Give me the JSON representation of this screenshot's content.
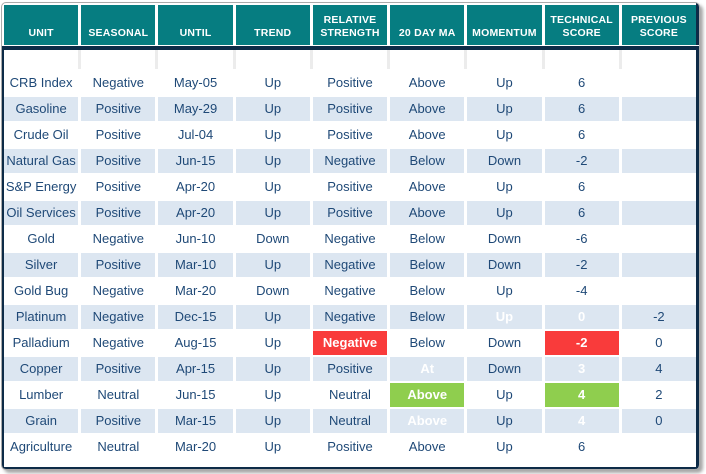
{
  "colors": {
    "header_teal": "#067d81",
    "divider_navy": "#0d2b47",
    "row_alt_blue": "#dce6f1",
    "text_navy": "#1f4977",
    "highlight_green": "#8fce4e",
    "highlight_red": "#f93b3b"
  },
  "table": {
    "columns": [
      "UNIT",
      "SEASONAL",
      "UNTIL",
      "TREND",
      "RELATIVE STRENGTH",
      "20 DAY MA",
      "MOMENTUM",
      "TECHNICAL SCORE",
      "PREVIOUS SCORE"
    ],
    "rows": [
      {
        "cells": [
          "CRB Index",
          "Negative",
          "May-05",
          "Up",
          "Positive",
          "Above",
          "Up",
          "6",
          ""
        ],
        "highlights": {}
      },
      {
        "cells": [
          "Gasoline",
          "Positive",
          "May-29",
          "Up",
          "Positive",
          "Above",
          "Up",
          "6",
          ""
        ],
        "highlights": {}
      },
      {
        "cells": [
          "Crude Oil",
          "Positive",
          "Jul-04",
          "Up",
          "Positive",
          "Above",
          "Up",
          "6",
          ""
        ],
        "highlights": {}
      },
      {
        "cells": [
          "Natural Gas",
          "Positive",
          "Jun-15",
          "Up",
          "Negative",
          "Below",
          "Down",
          "-2",
          ""
        ],
        "highlights": {}
      },
      {
        "cells": [
          "S&P Energy",
          "Positive",
          "Apr-20",
          "Up",
          "Positive",
          "Above",
          "Up",
          "6",
          ""
        ],
        "highlights": {}
      },
      {
        "cells": [
          "Oil Services",
          "Positive",
          "Apr-20",
          "Up",
          "Positive",
          "Above",
          "Up",
          "6",
          ""
        ],
        "highlights": {}
      },
      {
        "cells": [
          "Gold",
          "Negative",
          "Jun-10",
          "Down",
          "Negative",
          "Below",
          "Down",
          "-6",
          ""
        ],
        "highlights": {}
      },
      {
        "cells": [
          "Silver",
          "Positive",
          "Mar-10",
          "Up",
          "Negative",
          "Below",
          "Down",
          "-2",
          ""
        ],
        "highlights": {}
      },
      {
        "cells": [
          "Gold Bug",
          "Negative",
          "Mar-20",
          "Down",
          "Negative",
          "Below",
          "Up",
          "-4",
          ""
        ],
        "highlights": {}
      },
      {
        "cells": [
          "Platinum",
          "Negative",
          "Dec-15",
          "Up",
          "Negative",
          "Below",
          "Up",
          "0",
          "-2"
        ],
        "highlights": {
          "6": "green",
          "7": "green"
        }
      },
      {
        "cells": [
          "Palladium",
          "Negative",
          "Aug-15",
          "Up",
          "Negative",
          "Below",
          "Down",
          "-2",
          "0"
        ],
        "highlights": {
          "4": "red",
          "7": "red"
        }
      },
      {
        "cells": [
          "Copper",
          "Positive",
          "Apr-15",
          "Up",
          "Positive",
          "At",
          "Down",
          "3",
          "4"
        ],
        "highlights": {
          "5": "red",
          "7": "red"
        }
      },
      {
        "cells": [
          "Lumber",
          "Neutral",
          "Jun-15",
          "Up",
          "Neutral",
          "Above",
          "Up",
          "4",
          "2"
        ],
        "highlights": {
          "5": "green",
          "7": "green"
        }
      },
      {
        "cells": [
          "Grain",
          "Positive",
          "Mar-15",
          "Up",
          "Neutral",
          "Above",
          "Up",
          "4",
          "0"
        ],
        "highlights": {
          "5": "green",
          "7": "green"
        }
      },
      {
        "cells": [
          "Agriculture",
          "Neutral",
          "Mar-20",
          "Up",
          "Positive",
          "Above",
          "Up",
          "6",
          ""
        ],
        "highlights": {}
      }
    ]
  }
}
